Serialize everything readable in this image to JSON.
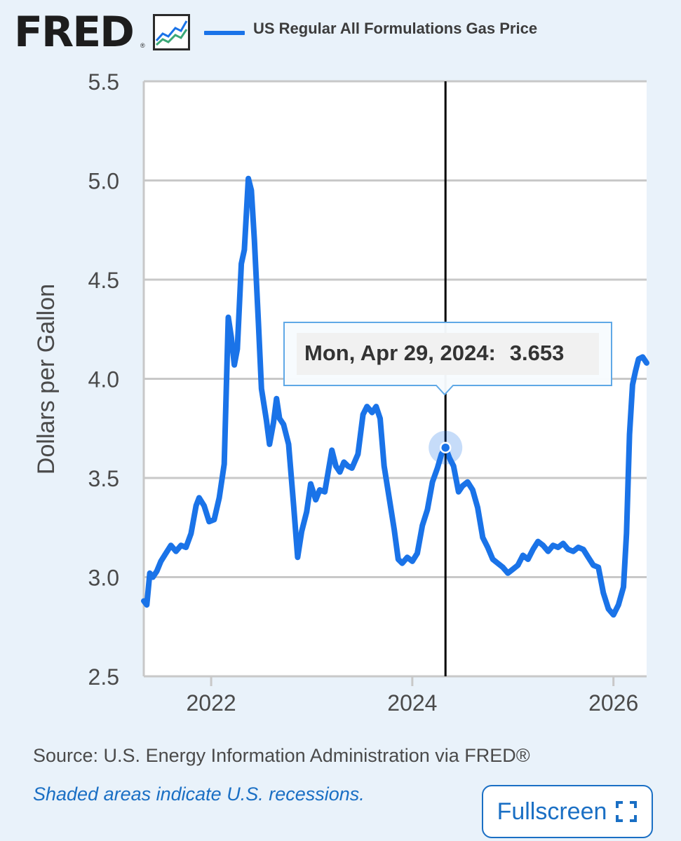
{
  "brand": {
    "logo_text": "FRED",
    "registered_mark": "®",
    "logo_icon": "line-graph-icon"
  },
  "legend": {
    "series_label": "US Regular All Formulations Gas Price",
    "color": "#1a73e8"
  },
  "tooltip": {
    "date": "Mon, Apr 29, 2024:",
    "value": "3.653"
  },
  "footer": {
    "source": "Source: U.S. Energy Information Administration via FRED®",
    "recession_note": "Shaded areas indicate U.S. recessions.",
    "fullscreen_label": "Fullscreen",
    "fullscreen_icon": "expand-icon"
  },
  "colors": {
    "series": "#1a73e8",
    "link": "#1a6fc4",
    "background": "#e9f2fa",
    "plot_bg": "#ffffff"
  },
  "chart_data": {
    "type": "line",
    "ylabel": "Dollars per Gallon",
    "xlabel": "",
    "ylim": [
      2.5,
      5.5
    ],
    "xlim": [
      2021.33,
      2026.33
    ],
    "y_ticks": [
      "5.5",
      "5.0",
      "4.5",
      "4.0",
      "3.5",
      "3.0",
      "2.5"
    ],
    "x_ticks": [
      "2022",
      "2024",
      "2026"
    ],
    "grid": true,
    "legend_position": "top",
    "highlight": {
      "x": 2024.33,
      "y": 3.653
    },
    "series": [
      {
        "name": "US Regular All Formulations Gas Price",
        "color": "#1a73e8",
        "points": [
          [
            2021.33,
            2.88
          ],
          [
            2021.36,
            2.86
          ],
          [
            2021.39,
            3.02
          ],
          [
            2021.42,
            3.0
          ],
          [
            2021.46,
            3.03
          ],
          [
            2021.5,
            3.08
          ],
          [
            2021.55,
            3.12
          ],
          [
            2021.6,
            3.16
          ],
          [
            2021.65,
            3.13
          ],
          [
            2021.7,
            3.16
          ],
          [
            2021.75,
            3.15
          ],
          [
            2021.8,
            3.22
          ],
          [
            2021.85,
            3.36
          ],
          [
            2021.88,
            3.4
          ],
          [
            2021.93,
            3.36
          ],
          [
            2021.98,
            3.28
          ],
          [
            2022.03,
            3.29
          ],
          [
            2022.08,
            3.4
          ],
          [
            2022.13,
            3.57
          ],
          [
            2022.17,
            4.31
          ],
          [
            2022.2,
            4.21
          ],
          [
            2022.23,
            4.07
          ],
          [
            2022.26,
            4.15
          ],
          [
            2022.3,
            4.58
          ],
          [
            2022.33,
            4.65
          ],
          [
            2022.37,
            5.01
          ],
          [
            2022.4,
            4.95
          ],
          [
            2022.43,
            4.7
          ],
          [
            2022.47,
            4.28
          ],
          [
            2022.5,
            3.95
          ],
          [
            2022.55,
            3.79
          ],
          [
            2022.58,
            3.67
          ],
          [
            2022.62,
            3.78
          ],
          [
            2022.65,
            3.9
          ],
          [
            2022.68,
            3.8
          ],
          [
            2022.72,
            3.77
          ],
          [
            2022.77,
            3.67
          ],
          [
            2022.82,
            3.36
          ],
          [
            2022.86,
            3.1
          ],
          [
            2022.9,
            3.23
          ],
          [
            2022.95,
            3.33
          ],
          [
            2022.99,
            3.47
          ],
          [
            2023.04,
            3.39
          ],
          [
            2023.08,
            3.44
          ],
          [
            2023.13,
            3.43
          ],
          [
            2023.2,
            3.64
          ],
          [
            2023.24,
            3.56
          ],
          [
            2023.28,
            3.53
          ],
          [
            2023.32,
            3.58
          ],
          [
            2023.36,
            3.56
          ],
          [
            2023.4,
            3.55
          ],
          [
            2023.46,
            3.62
          ],
          [
            2023.51,
            3.82
          ],
          [
            2023.55,
            3.86
          ],
          [
            2023.6,
            3.83
          ],
          [
            2023.64,
            3.86
          ],
          [
            2023.68,
            3.8
          ],
          [
            2023.72,
            3.56
          ],
          [
            2023.77,
            3.4
          ],
          [
            2023.82,
            3.24
          ],
          [
            2023.86,
            3.09
          ],
          [
            2023.9,
            3.07
          ],
          [
            2023.95,
            3.1
          ],
          [
            2024.0,
            3.08
          ],
          [
            2024.05,
            3.12
          ],
          [
            2024.1,
            3.26
          ],
          [
            2024.15,
            3.34
          ],
          [
            2024.2,
            3.48
          ],
          [
            2024.25,
            3.55
          ],
          [
            2024.29,
            3.62
          ],
          [
            2024.33,
            3.653
          ],
          [
            2024.37,
            3.6
          ],
          [
            2024.41,
            3.56
          ],
          [
            2024.46,
            3.43
          ],
          [
            2024.5,
            3.46
          ],
          [
            2024.55,
            3.48
          ],
          [
            2024.6,
            3.44
          ],
          [
            2024.65,
            3.35
          ],
          [
            2024.7,
            3.2
          ],
          [
            2024.75,
            3.15
          ],
          [
            2024.8,
            3.09
          ],
          [
            2024.85,
            3.07
          ],
          [
            2024.9,
            3.05
          ],
          [
            2024.95,
            3.02
          ],
          [
            2025.0,
            3.04
          ],
          [
            2025.05,
            3.06
          ],
          [
            2025.1,
            3.11
          ],
          [
            2025.15,
            3.09
          ],
          [
            2025.2,
            3.14
          ],
          [
            2025.25,
            3.18
          ],
          [
            2025.3,
            3.16
          ],
          [
            2025.35,
            3.13
          ],
          [
            2025.4,
            3.16
          ],
          [
            2025.45,
            3.15
          ],
          [
            2025.5,
            3.17
          ],
          [
            2025.55,
            3.14
          ],
          [
            2025.6,
            3.13
          ],
          [
            2025.65,
            3.15
          ],
          [
            2025.7,
            3.14
          ],
          [
            2025.75,
            3.1
          ],
          [
            2025.8,
            3.06
          ],
          [
            2025.85,
            3.05
          ],
          [
            2025.9,
            2.92
          ],
          [
            2025.95,
            2.84
          ],
          [
            2026.0,
            2.81
          ],
          [
            2026.05,
            2.86
          ],
          [
            2026.1,
            2.95
          ],
          [
            2026.13,
            3.22
          ],
          [
            2026.16,
            3.72
          ],
          [
            2026.19,
            3.97
          ],
          [
            2026.22,
            4.04
          ],
          [
            2026.25,
            4.1
          ],
          [
            2026.29,
            4.11
          ],
          [
            2026.33,
            4.08
          ]
        ]
      }
    ]
  }
}
